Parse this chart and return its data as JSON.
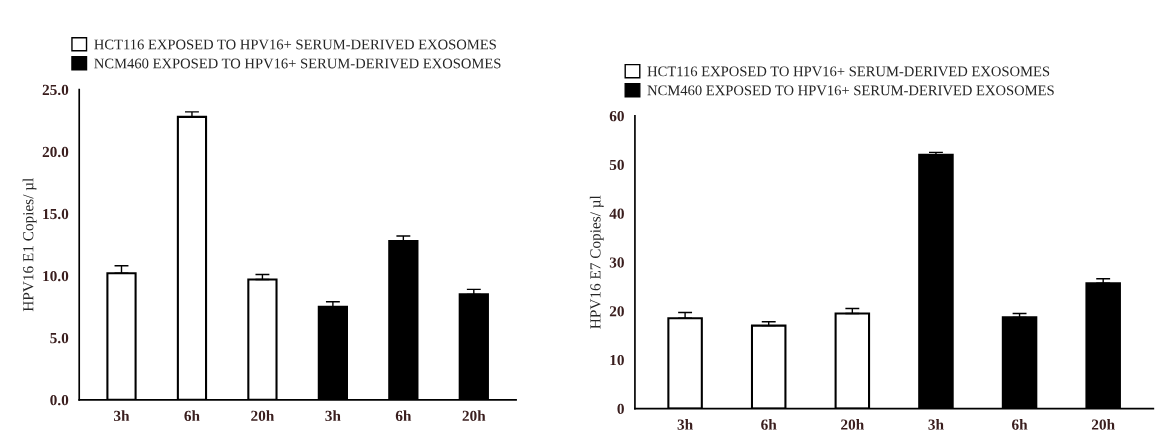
{
  "chart_data": [
    {
      "type": "bar",
      "ylabel": "HPV16 E1 Copies/ µl",
      "categories": [
        "3h",
        "6h",
        "20h",
        "3h",
        "6h",
        "20h"
      ],
      "series": [
        {
          "name": "HCT116 EXPOSED TO HPV16+ SERUM-DERIVED EXOSOMES",
          "color": "#ffffff",
          "values": [
            10.2,
            22.8,
            9.7,
            null,
            null,
            null
          ],
          "errors": [
            [
              10.2,
              10.8
            ],
            [
              22.8,
              23.2
            ],
            [
              9.7,
              10.1
            ],
            null,
            null,
            null
          ]
        },
        {
          "name": "NCM460 EXPOSED TO HPV16+ SERUM-DERIVED EXOSOMES",
          "color": "#000000",
          "values": [
            null,
            null,
            null,
            7.5,
            12.8,
            8.5
          ],
          "errors": [
            null,
            null,
            null,
            [
              7.5,
              7.9
            ],
            [
              12.8,
              13.2
            ],
            [
              8.5,
              8.9
            ]
          ]
        }
      ],
      "ylim": [
        0,
        25
      ],
      "yticks": [
        {
          "value": 0,
          "label": "0.0"
        },
        {
          "value": 5,
          "label": "5.0"
        },
        {
          "value": 10,
          "label": "10.0"
        },
        {
          "value": 15,
          "label": "15.0"
        },
        {
          "value": 20,
          "label": "20.0"
        },
        {
          "value": 25,
          "label": "25.0"
        }
      ],
      "legend": "top left",
      "grid": false
    },
    {
      "type": "bar",
      "ylabel": "HPV16 E7 Copies/ µl",
      "categories": [
        "3h",
        "6h",
        "20h",
        "3h",
        "6h",
        "20h"
      ],
      "series": [
        {
          "name": "HCT116 EXPOSED TO HPV16+ SERUM-DERIVED EXOSOMES",
          "color": "#ffffff",
          "values": [
            18.5,
            17,
            19.5,
            null,
            null,
            null
          ],
          "errors": [
            [
              18.5,
              19.7
            ],
            [
              17,
              17.8
            ],
            [
              19.5,
              20.5
            ],
            null,
            null,
            null
          ]
        },
        {
          "name": "NCM460 EXPOSED TO HPV16+ SERUM-DERIVED EXOSOMES",
          "color": "#000000",
          "values": [
            null,
            null,
            null,
            52,
            18.7,
            25.7
          ],
          "errors": [
            null,
            null,
            null,
            [
              52,
              52.5
            ],
            [
              18.7,
              19.5
            ],
            [
              25.7,
              26.6
            ]
          ]
        }
      ],
      "ylim": [
        0,
        60
      ],
      "yticks": [
        0,
        10,
        20,
        30,
        40,
        50,
        60
      ],
      "legend": "top left",
      "grid": false
    }
  ]
}
